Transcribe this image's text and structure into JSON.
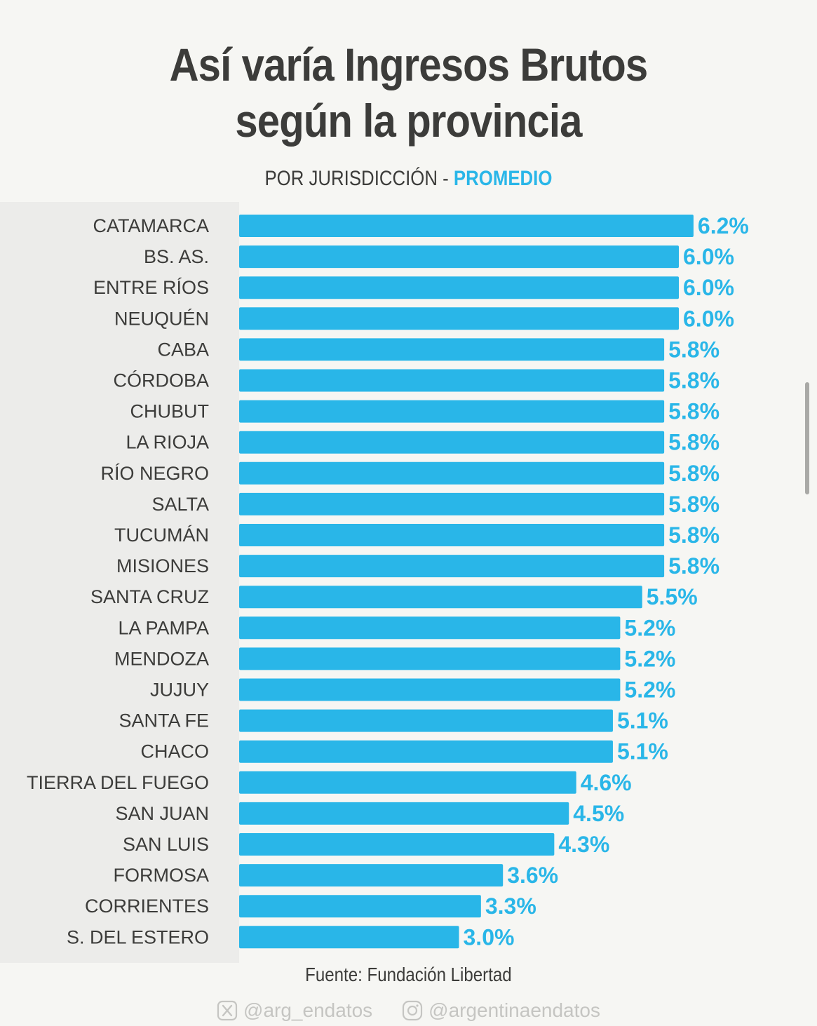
{
  "header": {
    "title_line1": "Así varía Ingresos Brutos",
    "title_line2": "según la provincia",
    "subtitle_prefix": "POR JURISDICCIÓN - ",
    "subtitle_accent": "PROMEDIO"
  },
  "chart_data": {
    "type": "bar",
    "orientation": "horizontal",
    "title": "Así varía Ingresos Brutos según la provincia",
    "subtitle": "POR JURISDICCIÓN - PROMEDIO",
    "categories": [
      "CATAMARCA",
      "BS. AS.",
      "ENTRE RÍOS",
      "NEUQUÉN",
      "CABA",
      "CÓRDOBA",
      "CHUBUT",
      "LA RIOJA",
      "RÍO NEGRO",
      "SALTA",
      "TUCUMÁN",
      "MISIONES",
      "SANTA CRUZ",
      "LA PAMPA",
      "MENDOZA",
      "JUJUY",
      "SANTA FE",
      "CHACO",
      "TIERRA DEL FUEGO",
      "SAN JUAN",
      "SAN LUIS",
      "FORMOSA",
      "CORRIENTES",
      "S. DEL ESTERO"
    ],
    "values": [
      6.2,
      6.0,
      6.0,
      6.0,
      5.8,
      5.8,
      5.8,
      5.8,
      5.8,
      5.8,
      5.8,
      5.8,
      5.5,
      5.2,
      5.2,
      5.2,
      5.1,
      5.1,
      4.6,
      4.5,
      4.3,
      3.6,
      3.3,
      3.0
    ],
    "value_labels": [
      "6.2%",
      "6.0%",
      "6.0%",
      "6.0%",
      "5.8%",
      "5.8%",
      "5.8%",
      "5.8%",
      "5.8%",
      "5.8%",
      "5.8%",
      "5.8%",
      "5.5%",
      "5.2%",
      "5.2%",
      "5.2%",
      "5.1%",
      "5.1%",
      "4.6%",
      "4.5%",
      "4.3%",
      "3.6%",
      "3.3%",
      "3.0%"
    ],
    "xlabel": "",
    "ylabel": "",
    "grid": false,
    "bar_color": "#29b6e8",
    "label_color": "#3c3c3a",
    "value_color": "#29b6e8"
  },
  "footer": {
    "source": "Fuente: Fundación Libertad",
    "twitter_handle": "@arg_endatos",
    "instagram_handle": "@argentinaendatos",
    "twitter_icon": "x-logo-icon",
    "instagram_icon": "instagram-icon"
  }
}
